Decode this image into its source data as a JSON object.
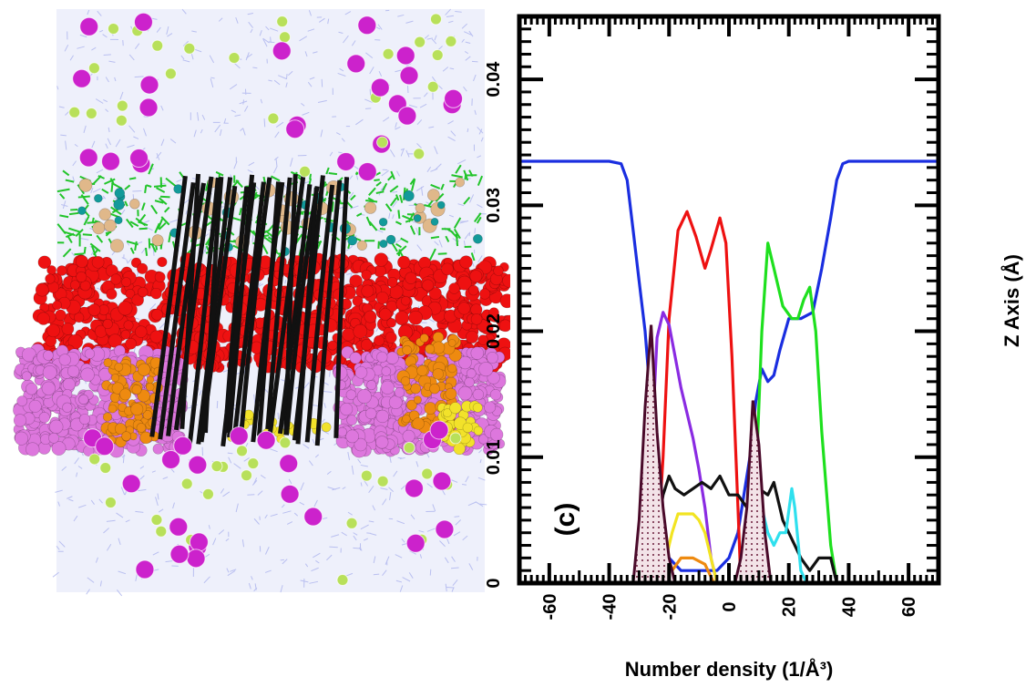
{
  "figure": {
    "panel_label": "(c)",
    "x_axis_title": "Number density (1/Å³)",
    "y_axis_title": "Z Axis (Å)"
  },
  "molecular_scene": {
    "colors": {
      "water": "#b9bff0",
      "lipid_heads": "#22c42a",
      "carbonyl": "#ee1111",
      "tails": "#dd77dd",
      "orange_groups": "#ee8a10",
      "yellow_groups": "#f2e22a",
      "protein": "#111111",
      "ions_large": "#cc22cc",
      "ions_small": "#b8e05a",
      "phosphate": "#129a9a",
      "tan": "#e0b88a"
    }
  },
  "chart_data": {
    "type": "line",
    "orientation": "rotated",
    "xlabel": "Number density (1/Å³)",
    "ylabel": "Z Axis (Å)",
    "xlim": [
      0,
      0.045
    ],
    "ylim": [
      -70,
      70
    ],
    "x_ticks": [
      "0",
      "0.01",
      "0.02",
      "0.03",
      "0.04"
    ],
    "y_ticks": [
      "-60",
      "-40",
      "-20",
      "0",
      "20",
      "40",
      "60"
    ],
    "x_tick_values": [
      0,
      0.01,
      0.02,
      0.03,
      0.04
    ],
    "y_tick_values": [
      -60,
      -40,
      -20,
      0,
      20,
      40,
      60
    ],
    "grid": false,
    "annotations": [
      "(c)"
    ],
    "series": [
      {
        "color": "#1a2ee0",
        "points": [
          [
            -70,
            0.0335
          ],
          [
            -40,
            0.0335
          ],
          [
            -36,
            0.0333
          ],
          [
            -34,
            0.032
          ],
          [
            -32,
            0.028
          ],
          [
            -30,
            0.024
          ],
          [
            -28,
            0.02
          ],
          [
            -26,
            0.014
          ],
          [
            -24,
            0.008
          ],
          [
            -22,
            0.004
          ],
          [
            -20,
            0.002
          ],
          [
            -16,
            0.001
          ],
          [
            -10,
            0.001
          ],
          [
            -4,
            0.001
          ],
          [
            0,
            0.002
          ],
          [
            3,
            0.004
          ],
          [
            5,
            0.007
          ],
          [
            7,
            0.01
          ],
          [
            9,
            0.0145
          ],
          [
            11,
            0.017
          ],
          [
            13,
            0.016
          ],
          [
            15,
            0.0165
          ],
          [
            17,
            0.0185
          ],
          [
            20,
            0.021
          ],
          [
            24,
            0.021
          ],
          [
            28,
            0.0215
          ],
          [
            31,
            0.025
          ],
          [
            34,
            0.029
          ],
          [
            36,
            0.032
          ],
          [
            38,
            0.0333
          ],
          [
            40,
            0.0335
          ],
          [
            70,
            0.0335
          ]
        ]
      },
      {
        "color": "#1ee01e",
        "points": [
          [
            36,
            0
          ],
          [
            34,
            0.003
          ],
          [
            31,
            0.012
          ],
          [
            29,
            0.02
          ],
          [
            27,
            0.0235
          ],
          [
            25,
            0.0225
          ],
          [
            23,
            0.021
          ],
          [
            21,
            0.021
          ],
          [
            18,
            0.022
          ],
          [
            15,
            0.025
          ],
          [
            13,
            0.027
          ],
          [
            11,
            0.02
          ],
          [
            9,
            0.008
          ],
          [
            7,
            0.002
          ],
          [
            5,
            0
          ]
        ]
      },
      {
        "color": "#ee1111",
        "points": [
          [
            4,
            0
          ],
          [
            3,
            0.006
          ],
          [
            1,
            0.018
          ],
          [
            -1,
            0.027
          ],
          [
            -3,
            0.029
          ],
          [
            -6,
            0.0265
          ],
          [
            -8,
            0.025
          ],
          [
            -11,
            0.0275
          ],
          [
            -14,
            0.0295
          ],
          [
            -17,
            0.028
          ],
          [
            -20,
            0.021
          ],
          [
            -22,
            0.01
          ],
          [
            -24,
            0.002
          ],
          [
            -26,
            0
          ]
        ]
      },
      {
        "color": "#8a2be2",
        "points": [
          [
            -4,
            0
          ],
          [
            -6,
            0.002
          ],
          [
            -8,
            0.006
          ],
          [
            -10,
            0.009
          ],
          [
            -12,
            0.0115
          ],
          [
            -14,
            0.0135
          ],
          [
            -16,
            0.0155
          ],
          [
            -18,
            0.018
          ],
          [
            -20,
            0.0205
          ],
          [
            -22,
            0.0215
          ],
          [
            -24,
            0.0195
          ],
          [
            -26,
            0.01
          ],
          [
            -28,
            0.003
          ],
          [
            -30,
            0
          ]
        ]
      },
      {
        "color": "#111111",
        "points": [
          [
            36,
            0
          ],
          [
            34,
            0.002
          ],
          [
            30,
            0.002
          ],
          [
            27,
            0.001
          ],
          [
            24,
            0.002
          ],
          [
            22,
            0.003
          ],
          [
            20,
            0.004
          ],
          [
            18,
            0.005
          ],
          [
            15,
            0.008
          ],
          [
            13,
            0.007
          ],
          [
            10,
            0.0075
          ],
          [
            6,
            0.006
          ],
          [
            3,
            0.007
          ],
          [
            0,
            0.007
          ],
          [
            -3,
            0.0085
          ],
          [
            -6,
            0.0075
          ],
          [
            -9,
            0.008
          ],
          [
            -12,
            0.0075
          ],
          [
            -15,
            0.007
          ],
          [
            -18,
            0.0075
          ],
          [
            -20,
            0.0085
          ],
          [
            -22,
            0.007
          ],
          [
            -24,
            0.004
          ],
          [
            -26,
            0.002
          ],
          [
            -28,
            0.001
          ],
          [
            -32,
            0
          ]
        ]
      },
      {
        "color": "#2fe0ee",
        "points": [
          [
            26,
            0
          ],
          [
            24,
            0.001
          ],
          [
            22,
            0.006
          ],
          [
            21,
            0.0075
          ],
          [
            19,
            0.004
          ],
          [
            17,
            0.004
          ],
          [
            15,
            0.003
          ],
          [
            13,
            0.004
          ],
          [
            11,
            0.006
          ],
          [
            9,
            0.004
          ],
          [
            7,
            0.001
          ],
          [
            5,
            0
          ]
        ]
      },
      {
        "color": "#f2e422",
        "points": [
          [
            -4,
            0
          ],
          [
            -6,
            0.002
          ],
          [
            -8,
            0.004
          ],
          [
            -10,
            0.005
          ],
          [
            -12,
            0.0055
          ],
          [
            -15,
            0.0055
          ],
          [
            -17,
            0.0055
          ],
          [
            -19,
            0.004
          ],
          [
            -21,
            0.002
          ],
          [
            -23,
            0
          ]
        ]
      },
      {
        "color": "#ee8a10",
        "points": [
          [
            -5,
            0
          ],
          [
            -8,
            0.0015
          ],
          [
            -12,
            0.002
          ],
          [
            -16,
            0.002
          ],
          [
            -19,
            0.001
          ],
          [
            -21,
            0
          ]
        ]
      },
      {
        "color": "#4a0a2a",
        "fill": "#e8d0d8",
        "points": [
          [
            2,
            0
          ],
          [
            4,
            0.002
          ],
          [
            6,
            0.006
          ],
          [
            8,
            0.0145
          ],
          [
            10,
            0.011
          ],
          [
            12,
            0.004
          ],
          [
            14,
            0
          ]
        ]
      },
      {
        "color": "#4a0a2a",
        "fill": "#e8d0d8",
        "points": [
          [
            -18,
            0
          ],
          [
            -20,
            0.002
          ],
          [
            -22,
            0.006
          ],
          [
            -24,
            0.012
          ],
          [
            -26,
            0.0205
          ],
          [
            -28,
            0.014
          ],
          [
            -30,
            0.005
          ],
          [
            -32,
            0
          ]
        ]
      }
    ]
  }
}
